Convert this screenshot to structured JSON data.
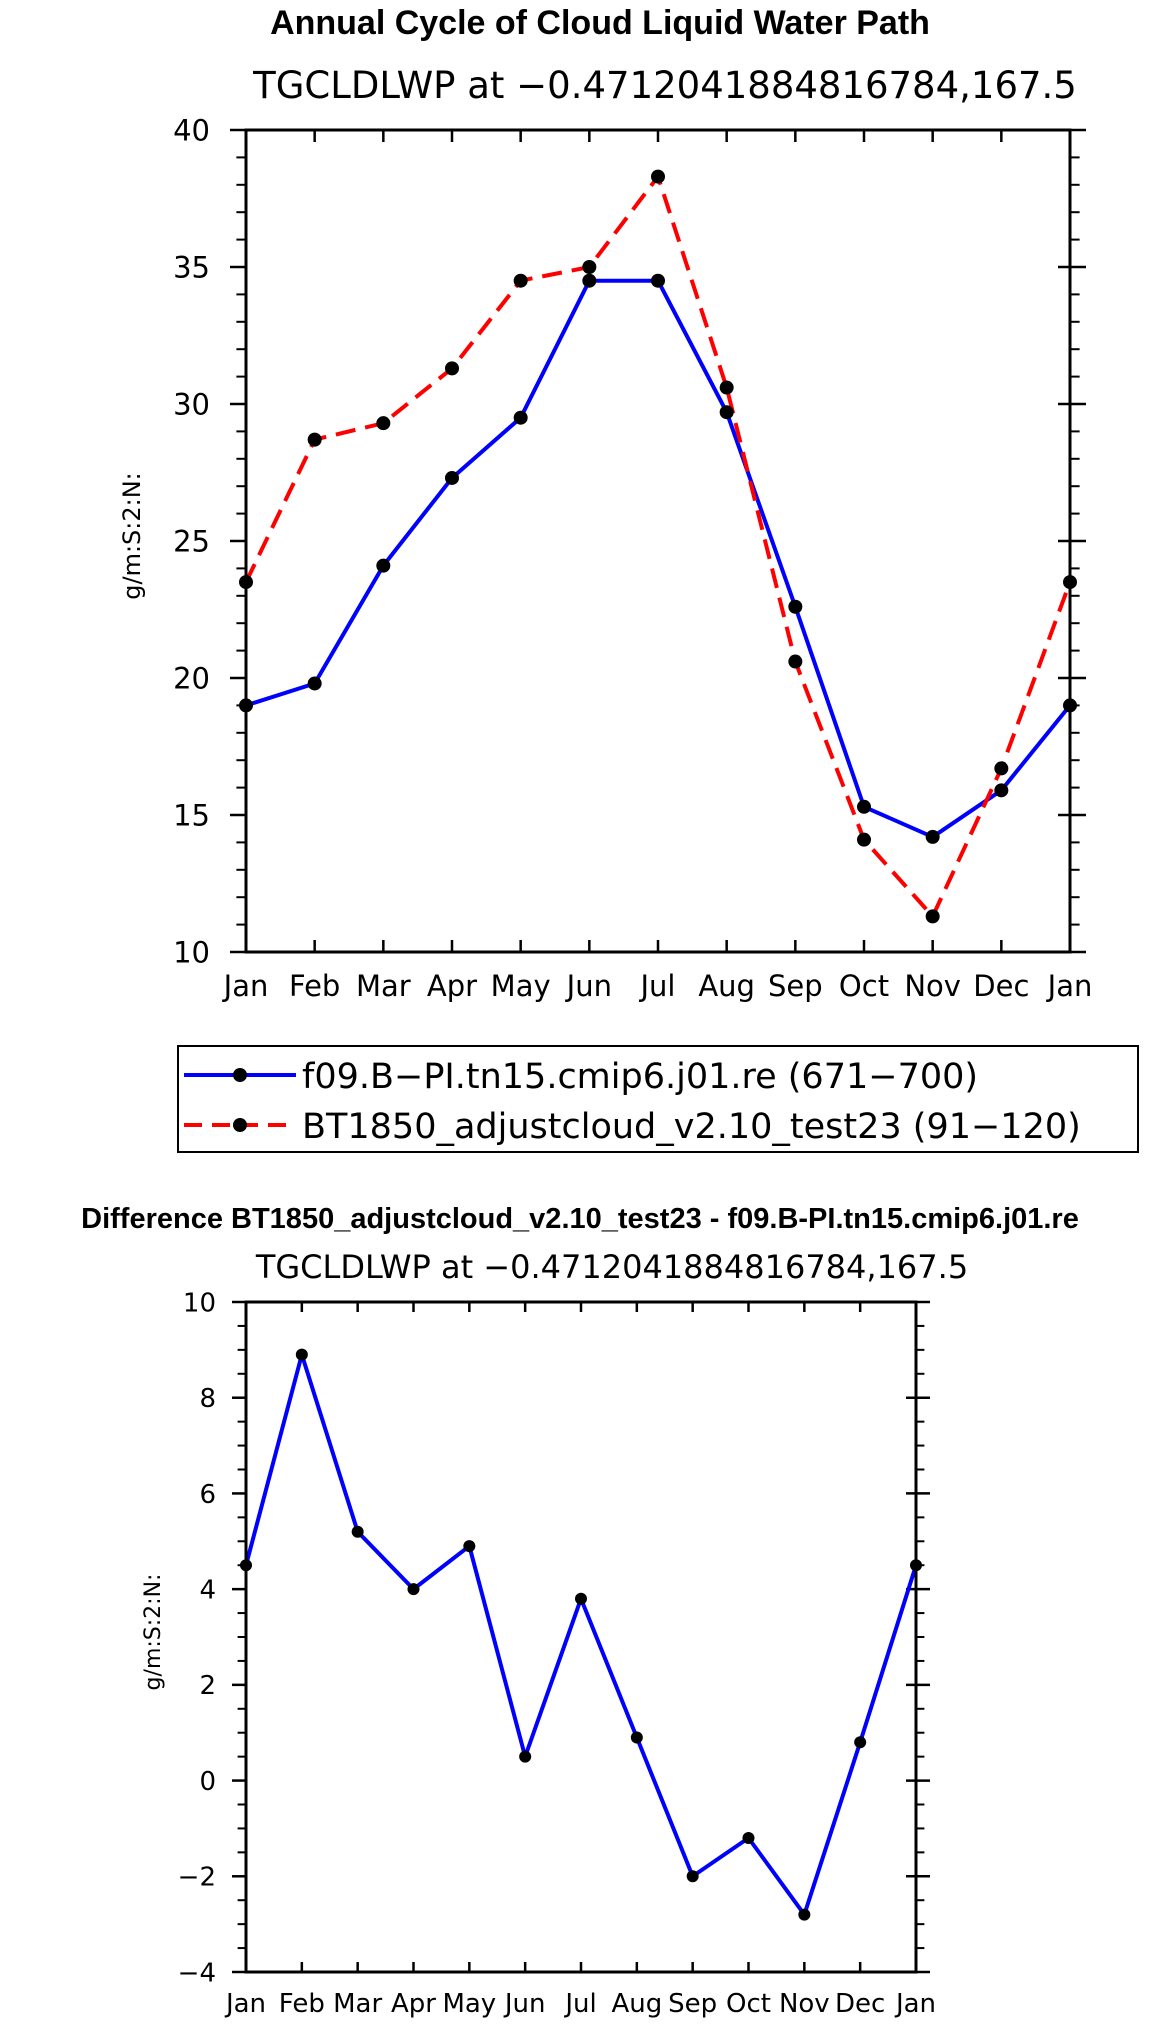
{
  "chart_data": [
    {
      "type": "line",
      "title": "Annual Cycle of Cloud Liquid Water Path",
      "subtitle": "TGCLDLWP at −0.4712041884816784,167.5",
      "xlabel": "",
      "ylabel": "g/m:S:2:N:",
      "categories": [
        "Jan",
        "Feb",
        "Mar",
        "Apr",
        "May",
        "Jun",
        "Jul",
        "Aug",
        "Sep",
        "Oct",
        "Nov",
        "Dec",
        "Jan"
      ],
      "ylim": [
        10,
        40
      ],
      "yticks": [
        "10",
        "15",
        "20",
        "25",
        "30",
        "35",
        "40"
      ],
      "series": [
        {
          "name": "f09.B−PI.tn15.cmip6.j01.re (671−700)",
          "color": "#0000ff",
          "style": "solid",
          "values": [
            19.0,
            19.8,
            24.1,
            27.3,
            29.5,
            34.5,
            34.5,
            29.7,
            22.6,
            15.3,
            14.2,
            15.9,
            19.0
          ]
        },
        {
          "name": "BT1850_adjustcloud_v2.10_test23 (91−120)",
          "color": "#ff0000",
          "style": "dashed",
          "values": [
            23.5,
            28.7,
            29.3,
            31.3,
            34.5,
            35.0,
            38.3,
            30.6,
            20.6,
            14.1,
            11.3,
            16.7,
            23.5
          ]
        }
      ],
      "legend": "bottom"
    },
    {
      "type": "line",
      "title": "Difference BT1850_adjustcloud_v2.10_test23 - f09.B-PI.tn15.cmip6.j01.re",
      "subtitle": "TGCLDLWP at −0.4712041884816784,167.5",
      "xlabel": "",
      "ylabel": "g/m:S:2:N:",
      "categories": [
        "Jan",
        "Feb",
        "Mar",
        "Apr",
        "May",
        "Jun",
        "Jul",
        "Aug",
        "Sep",
        "Oct",
        "Nov",
        "Dec",
        "Jan"
      ],
      "ylim": [
        -4,
        10
      ],
      "yticks": [
        "−4",
        "−2",
        "0",
        "2",
        "4",
        "6",
        "8",
        "10"
      ],
      "series": [
        {
          "name": "Difference",
          "color": "#0000ff",
          "style": "solid",
          "values": [
            4.5,
            8.9,
            5.2,
            4.0,
            4.9,
            0.5,
            3.8,
            0.9,
            -2.0,
            -1.2,
            -2.8,
            0.8,
            4.5
          ]
        }
      ]
    }
  ]
}
